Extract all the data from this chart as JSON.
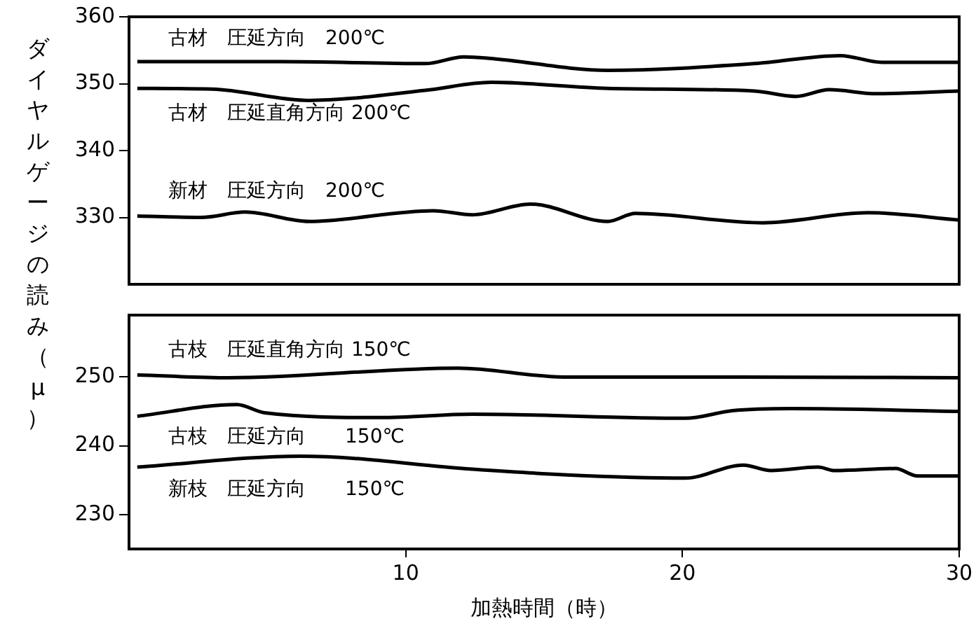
{
  "chart_data": [
    {
      "type": "line",
      "ylabel": "ダイヤルゲージの読み（μ）",
      "xlim": [
        0,
        30
      ],
      "xticks": [
        10,
        20,
        30
      ],
      "ylim": [
        320,
        360
      ],
      "yticks": [
        330,
        340,
        350,
        360
      ],
      "tick_labels": "y",
      "legend": false,
      "marker": "none",
      "series": [
        {
          "name": "古材　圧延方向　200℃",
          "color": "#000000",
          "x": [
            0.3,
            5.5,
            10.7,
            12.1,
            13,
            17.3,
            22.6,
            25.7,
            27.2,
            30
          ],
          "values": [
            353.3,
            353.3,
            353,
            354,
            353.8,
            352,
            353,
            354.2,
            353.2,
            353.2
          ]
        },
        {
          "name": "古材　圧延直角方向 200℃",
          "color": "#000000",
          "x": [
            0.3,
            3,
            6.5,
            10.7,
            13.1,
            17.3,
            22.6,
            24.1,
            25.3,
            27,
            30
          ],
          "values": [
            349.3,
            349.2,
            347.5,
            349,
            350.2,
            349.3,
            348.9,
            348.1,
            349.1,
            348.5,
            348.9
          ]
        },
        {
          "name": "新材　圧延方向　200℃",
          "color": "#000000",
          "x": [
            0.3,
            2.6,
            4.2,
            6.5,
            11,
            12.4,
            14.5,
            17.3,
            18.3,
            22.9,
            26.7,
            30
          ],
          "values": [
            330.2,
            330,
            330.8,
            329.4,
            331,
            330.4,
            332,
            329.4,
            330.6,
            329.2,
            330.7,
            329.6
          ]
        }
      ]
    },
    {
      "type": "line",
      "xlabel": "加熱時間（時）",
      "xlim": [
        0,
        30
      ],
      "xticks": [
        10,
        20,
        30
      ],
      "ylim": [
        225,
        259
      ],
      "yticks": [
        230,
        240,
        250
      ],
      "legend": false,
      "marker": "none",
      "series": [
        {
          "name": "古枝　圧延直角方向 150℃",
          "color": "#000000",
          "x": [
            0.3,
            3.6,
            11.9,
            15.7,
            22,
            30
          ],
          "values": [
            250.3,
            249.9,
            251.3,
            250,
            250,
            249.9
          ]
        },
        {
          "name": "古枝　圧延方向　　150℃",
          "color": "#000000",
          "x": [
            0.3,
            3.9,
            4.9,
            9.1,
            12.4,
            20.1,
            21.8,
            23.9,
            30
          ],
          "values": [
            244.3,
            246,
            244.8,
            244.1,
            244.6,
            244,
            245.1,
            245.4,
            245
          ]
        },
        {
          "name": "新枝　圧延方向　　150℃",
          "color": "#000000",
          "x": [
            0.3,
            6.2,
            12.4,
            15.7,
            20.1,
            22.2,
            23.2,
            24.9,
            25.5,
            27.7,
            28.5,
            30
          ],
          "values": [
            236.9,
            238.5,
            236.6,
            235.8,
            235.3,
            237.2,
            236.4,
            236.9,
            236.4,
            236.7,
            235.6,
            235.6
          ]
        }
      ]
    }
  ]
}
